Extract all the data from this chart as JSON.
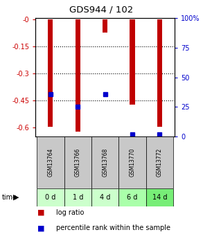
{
  "title": "GDS944 / 102",
  "samples": [
    "GSM13764",
    "GSM13766",
    "GSM13768",
    "GSM13770",
    "GSM13772"
  ],
  "time_labels": [
    "0 d",
    "1 d",
    "4 d",
    "6 d",
    "14 d"
  ],
  "log_ratios": [
    -0.595,
    -0.62,
    -0.07,
    -0.47,
    -0.595
  ],
  "percentile_ranks": [
    36,
    25,
    36,
    2,
    2
  ],
  "ylim_left": [
    -0.65,
    0.01
  ],
  "ylim_right": [
    0,
    100
  ],
  "yticks_left": [
    0.0,
    -0.15,
    -0.3,
    -0.45,
    -0.6
  ],
  "ytick_labels_left": [
    "-0",
    "-0.15",
    "-0.3",
    "-0.45",
    "-0.6"
  ],
  "yticks_right": [
    0,
    25,
    50,
    75,
    100
  ],
  "ytick_labels_right": [
    "0",
    "25",
    "50",
    "75",
    "100%"
  ],
  "bar_color": "#c00000",
  "marker_color": "#0000cc",
  "bg_color_samples": "#c8c8c8",
  "plot_bg": "#ffffff",
  "left_tick_color": "#cc0000",
  "right_tick_color": "#0000cc",
  "bar_width": 0.18,
  "time_colors": [
    "#ccffcc",
    "#ccffcc",
    "#ccffcc",
    "#aaffaa",
    "#77ee77"
  ],
  "grid_yticks": [
    -0.15,
    -0.3,
    -0.45
  ]
}
